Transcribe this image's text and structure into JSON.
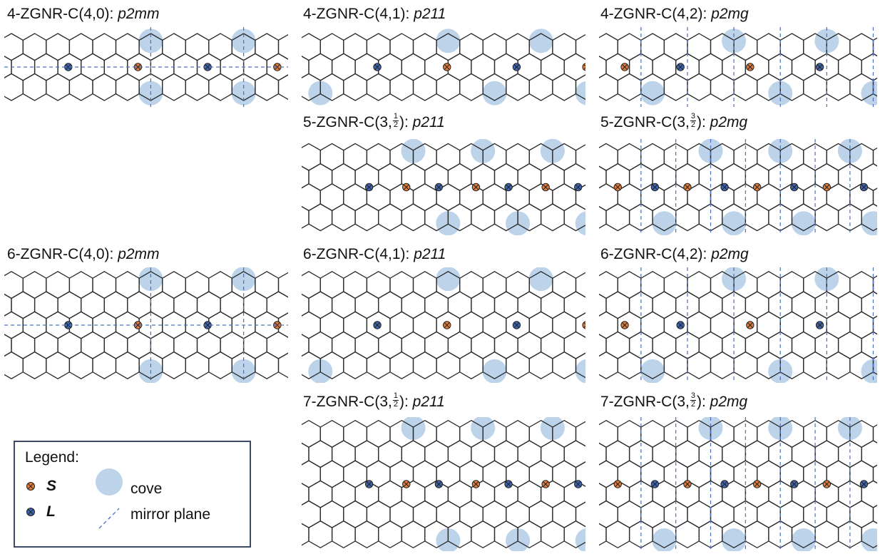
{
  "colors": {
    "lattice": "#2a2a2a",
    "cove": "#bcd3ea",
    "site_S": "#e07b39",
    "site_L": "#3e64b0",
    "mirror": "#4a6fc4"
  },
  "panels": [
    {
      "id": "p1",
      "title_main": "4-ZGNR-C(4,0): ",
      "frac": null,
      "title_tail": "",
      "group": "p2mm",
      "width": 4,
      "cove": "4,0"
    },
    {
      "id": "p2",
      "title_main": "4-ZGNR-C(4,1): ",
      "frac": null,
      "title_tail": "",
      "group": "p211",
      "width": 4,
      "cove": "4,1"
    },
    {
      "id": "p3",
      "title_main": "4-ZGNR-C(4,2): ",
      "frac": null,
      "title_tail": "",
      "group": "p2mg",
      "width": 4,
      "cove": "4,2"
    },
    {
      "id": "p4",
      "title_main": "5-ZGNR-C(3,",
      "frac": {
        "num": "1",
        "den": "2"
      },
      "title_tail": "): ",
      "group": "p211",
      "width": 5,
      "cove": "3,1/2"
    },
    {
      "id": "p5",
      "title_main": "5-ZGNR-C(3,",
      "frac": {
        "num": "3",
        "den": "2"
      },
      "title_tail": "): ",
      "group": "p2mg",
      "width": 5,
      "cove": "3,3/2"
    },
    {
      "id": "p6",
      "title_main": "6-ZGNR-C(4,0): ",
      "frac": null,
      "title_tail": "",
      "group": "p2mm",
      "width": 6,
      "cove": "4,0"
    },
    {
      "id": "p7",
      "title_main": "6-ZGNR-C(4,1): ",
      "frac": null,
      "title_tail": "",
      "group": "p211",
      "width": 6,
      "cove": "4,1"
    },
    {
      "id": "p8",
      "title_main": "6-ZGNR-C(4,2): ",
      "frac": null,
      "title_tail": "",
      "group": "p2mg",
      "width": 6,
      "cove": "4,2"
    },
    {
      "id": "p9",
      "title_main": "7-ZGNR-C(3,",
      "frac": {
        "num": "1",
        "den": "2"
      },
      "title_tail": "): ",
      "group": "p211",
      "width": 7,
      "cove": "3,1/2"
    },
    {
      "id": "p10",
      "title_main": "7-ZGNR-C(3,",
      "frac": {
        "num": "3",
        "den": "2"
      },
      "title_tail": "): ",
      "group": "p2mg",
      "width": 7,
      "cove": "3,3/2"
    }
  ],
  "legend": {
    "title": "Legend:",
    "site_S": "S",
    "site_L": "L",
    "cove": "cove",
    "mirror": "mirror plane"
  }
}
